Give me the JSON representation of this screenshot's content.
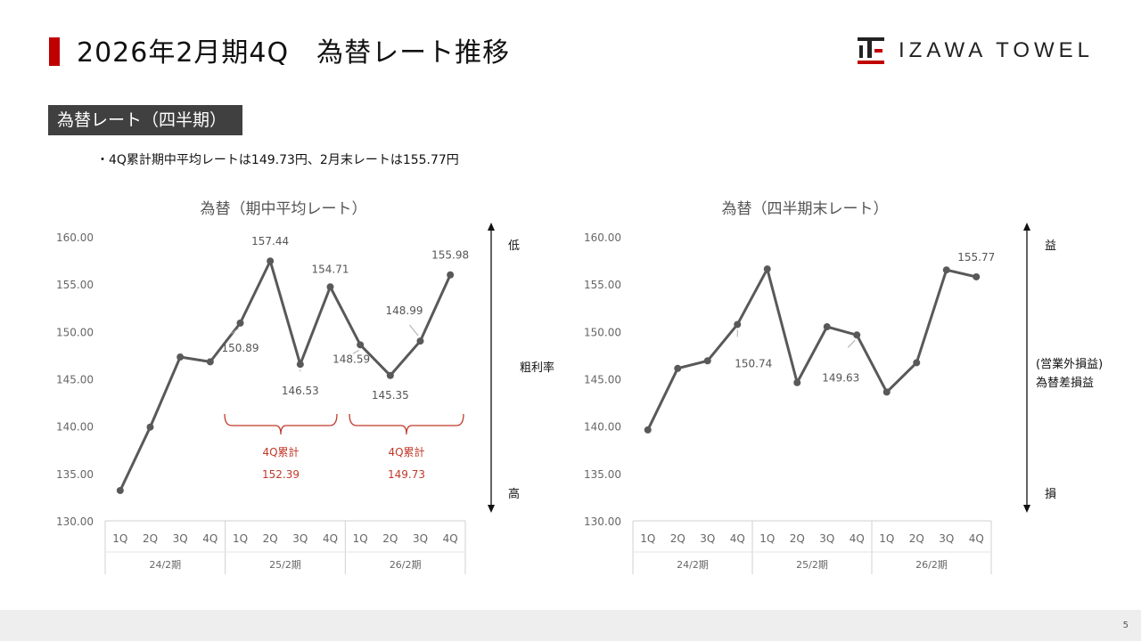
{
  "header": {
    "title": "2026年2月期4Q　為替レート推移",
    "logo_text": "IZAWA TOWEL"
  },
  "section": {
    "label": "為替レート（四半期）",
    "bullet": "・4Q累計期中平均レートは149.73円、2月末レートは155.77円"
  },
  "footer": {
    "page": "5"
  },
  "colors": {
    "accent": "#c00000",
    "line": "#595959",
    "bracket": "#c0392b"
  },
  "chart_data": [
    {
      "type": "line",
      "title": "為替（期中平均レート）",
      "ylim": [
        130,
        160
      ],
      "yticks": [
        "130.00",
        "135.00",
        "140.00",
        "145.00",
        "150.00",
        "155.00",
        "160.00"
      ],
      "quarters": [
        "1Q",
        "2Q",
        "3Q",
        "4Q",
        "1Q",
        "2Q",
        "3Q",
        "4Q",
        "1Q",
        "2Q",
        "3Q",
        "4Q"
      ],
      "groups": [
        "24/2期",
        "25/2期",
        "26/2期"
      ],
      "values": [
        133.2,
        139.9,
        147.3,
        146.8,
        150.89,
        157.44,
        146.53,
        154.71,
        148.59,
        145.35,
        148.99,
        155.98
      ],
      "labels": [
        null,
        null,
        null,
        null,
        "150.89",
        "157.44",
        "146.53",
        "154.71",
        "148.59",
        "145.35",
        "148.99",
        "155.98"
      ],
      "brackets": [
        {
          "title": "4Q累計",
          "value": "152.39"
        },
        {
          "title": "4Q累計",
          "value": "149.73"
        }
      ],
      "side": {
        "top": "低",
        "middle": [
          "粗利率"
        ],
        "bottom": "高"
      }
    },
    {
      "type": "line",
      "title": "為替（四半期末レート）",
      "ylim": [
        130,
        160
      ],
      "yticks": [
        "130.00",
        "135.00",
        "140.00",
        "145.00",
        "150.00",
        "155.00",
        "160.00"
      ],
      "quarters": [
        "1Q",
        "2Q",
        "3Q",
        "4Q",
        "1Q",
        "2Q",
        "3Q",
        "4Q",
        "1Q",
        "2Q",
        "3Q",
        "4Q"
      ],
      "groups": [
        "24/2期",
        "25/2期",
        "26/2期"
      ],
      "values": [
        139.6,
        146.1,
        146.9,
        150.74,
        156.6,
        144.6,
        150.5,
        149.63,
        143.6,
        146.7,
        156.5,
        155.77
      ],
      "labels": [
        null,
        null,
        null,
        "150.74",
        null,
        null,
        null,
        "149.63",
        null,
        null,
        null,
        "155.77"
      ],
      "brackets": [],
      "side": {
        "top": "益",
        "middle": [
          "(営業外損益)",
          "為替差損益"
        ],
        "bottom": "損"
      }
    }
  ]
}
